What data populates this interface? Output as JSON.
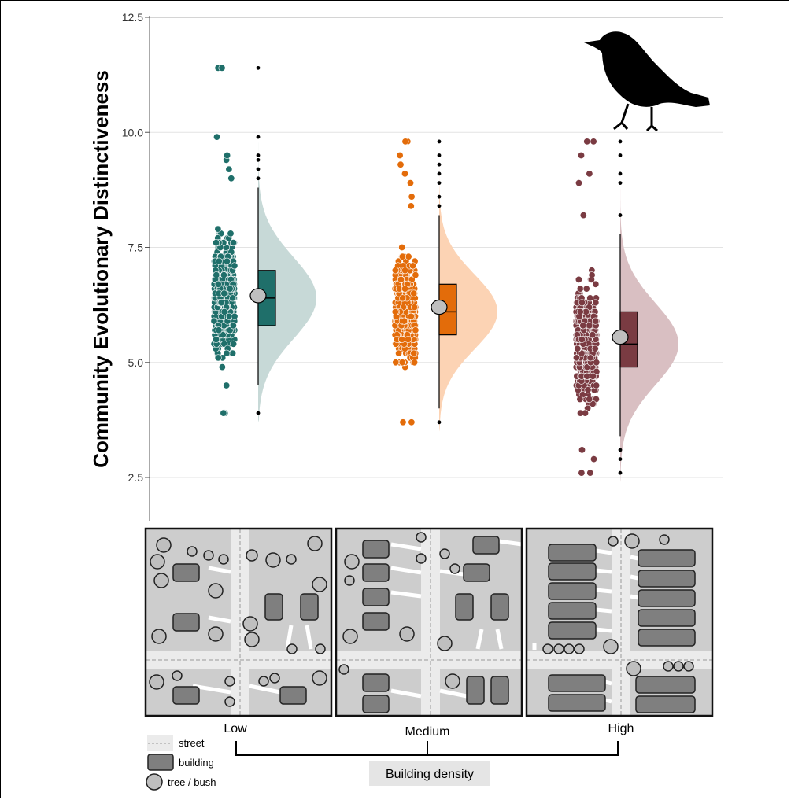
{
  "chart_data": {
    "type": "raincloud",
    "ylabel": "Community Evolutionary Distinctiveness",
    "ylim": [
      1.6,
      12.5
    ],
    "yticks": [
      2.5,
      5.0,
      7.5,
      10.0,
      12.5
    ],
    "ytick_labels": [
      "2.5",
      "5.0",
      "7.5",
      "10.0",
      "12.5"
    ],
    "grid": true,
    "categories": [
      "Low",
      "Medium",
      "High"
    ],
    "series": [
      {
        "category": "Low",
        "color": "#1F6F6A",
        "cloud_color": "#C7D9D7",
        "mean": 6.45,
        "median": 6.4,
        "q1": 5.8,
        "q3": 7.0,
        "whisker_low": 4.5,
        "whisker_high": 8.8,
        "min": 3.9,
        "max": 11.4,
        "outliers_high": [
          9.0,
          9.2,
          9.4,
          9.5,
          9.9,
          11.4
        ],
        "outliers_low": [
          3.9
        ]
      },
      {
        "category": "Medium",
        "color": "#E36C0A",
        "cloud_color": "#FCD3B4",
        "mean": 6.2,
        "median": 6.1,
        "q1": 5.6,
        "q3": 6.7,
        "whisker_low": 4.0,
        "whisker_high": 8.2,
        "min": 3.7,
        "max": 9.8,
        "outliers_high": [
          8.4,
          8.6,
          8.9,
          9.1,
          9.3,
          9.5,
          9.8
        ],
        "outliers_low": [
          3.7
        ]
      },
      {
        "category": "High",
        "color": "#7A3B42",
        "cloud_color": "#D9BFC2",
        "mean": 5.55,
        "median": 5.4,
        "q1": 4.9,
        "q3": 6.1,
        "whisker_low": 3.4,
        "whisker_high": 7.8,
        "min": 2.6,
        "max": 9.8,
        "outliers_high": [
          8.2,
          8.9,
          9.1,
          9.5,
          9.8
        ],
        "outliers_low": [
          2.6,
          2.9,
          3.1
        ]
      }
    ]
  },
  "bottom": {
    "x_title": "Building density",
    "legend": [
      {
        "label": "street",
        "color": "#EBEBEB"
      },
      {
        "label": "building",
        "color": "#7F7F7F"
      },
      {
        "label": "tree / bush",
        "color": "#BFBFBF"
      }
    ]
  },
  "icons": {
    "bird": "bird-silhouette-icon"
  }
}
